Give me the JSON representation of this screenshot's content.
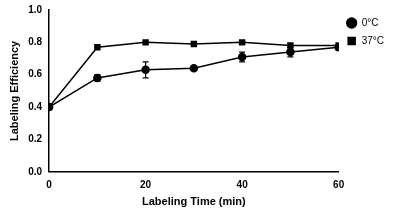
{
  "chart_data": {
    "type": "line",
    "x_label": "Labeling Time (min)",
    "y_label": "Labeling Efficiency",
    "x": [
      0,
      10,
      20,
      30,
      40,
      50,
      60
    ],
    "series": [
      {
        "name": "0°C",
        "color": "#000000",
        "marker": "circle",
        "line_style": "solid",
        "values": [
          0.4,
          0.58,
          0.63,
          0.64,
          0.71,
          0.74,
          0.77
        ],
        "errors": [
          0.01,
          0.02,
          0.05,
          0.01,
          0.03,
          0.03,
          0.02
        ]
      },
      {
        "name": "37°C",
        "color": "#000000",
        "marker": "square",
        "line_style": "solid",
        "values": [
          0.4,
          0.77,
          0.8,
          0.79,
          0.8,
          0.78,
          0.78
        ]
      }
    ],
    "xlim": [
      0,
      60
    ],
    "xticks": [
      0,
      20,
      40,
      60
    ],
    "ylim": [
      0,
      1
    ],
    "yticks": [
      {
        "value": 0,
        "label": "0.0"
      },
      0.2,
      0.4,
      0.6,
      0.8,
      {
        "value": 1,
        "label": "1.0"
      }
    ],
    "grid": false,
    "legend": "right"
  }
}
